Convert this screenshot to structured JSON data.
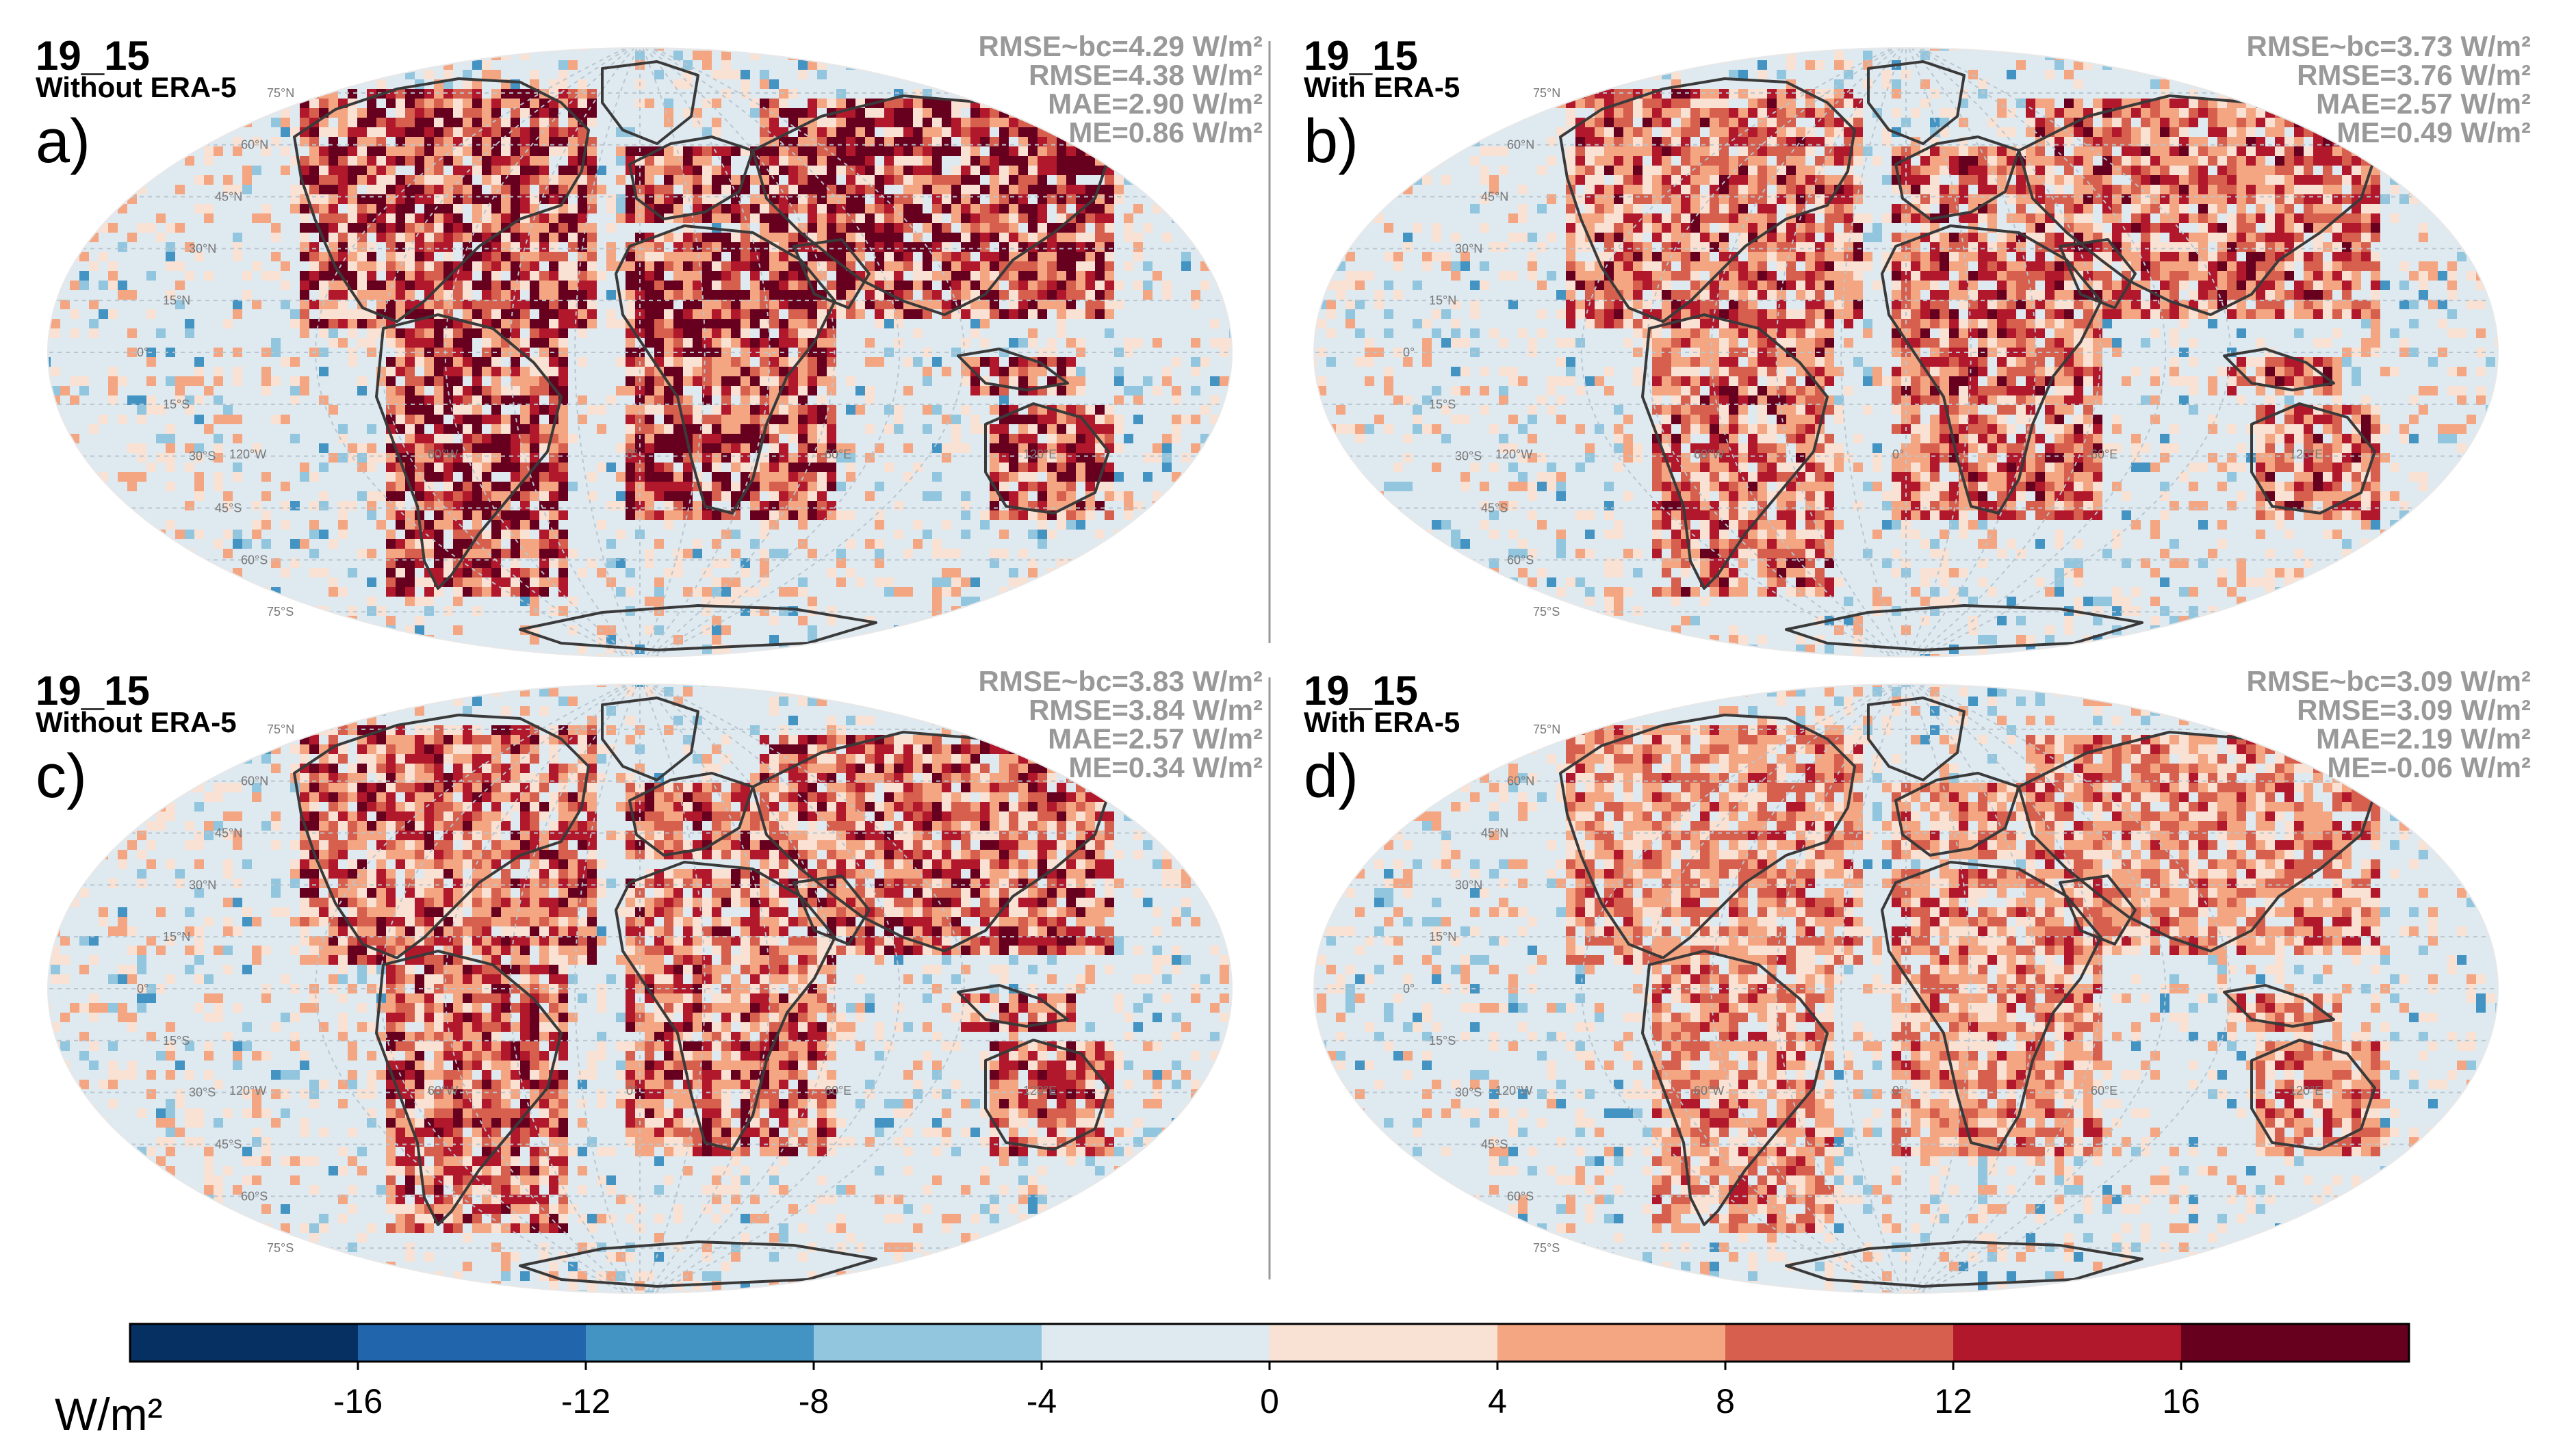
{
  "figure": {
    "panels": [
      {
        "letter": "a)",
        "title": "19_15",
        "subtitle": "Without ERA-5",
        "stats": [
          "RMSE~bc=4.29 W/m²",
          "RMSE=4.38 W/m²",
          "MAE=2.90 W/m²",
          "ME=0.86 W/m²"
        ]
      },
      {
        "letter": "b)",
        "title": "19_15",
        "subtitle": "With ERA-5",
        "stats": [
          "RMSE~bc=3.73 W/m²",
          "RMSE=3.76 W/m²",
          "MAE=2.57 W/m²",
          "ME=0.49 W/m²"
        ]
      },
      {
        "letter": "c)",
        "title": "19_15",
        "subtitle": "Without ERA-5",
        "stats": [
          "RMSE~bc=3.83 W/m²",
          "RMSE=3.84 W/m²",
          "MAE=2.57 W/m²",
          "ME=0.34 W/m²"
        ]
      },
      {
        "letter": "d)",
        "title": "19_15",
        "subtitle": "With ERA-5",
        "stats": [
          "RMSE~bc=3.09 W/m²",
          "RMSE=3.09 W/m²",
          "MAE=2.19 W/m²",
          "ME=-0.06 W/m²"
        ]
      }
    ],
    "graticule_labels": {
      "lat": [
        "75°N",
        "60°N",
        "45°N",
        "30°N",
        "15°N",
        "0°",
        "15°S",
        "30°S",
        "45°S",
        "60°S",
        "75°S"
      ],
      "lon": [
        "120°W",
        "60°W",
        "0°",
        "60°E",
        "120°E"
      ]
    },
    "colorbar": {
      "unit": "W/m²",
      "tick_labels": [
        "-16",
        "-12",
        "-8",
        "-4",
        "0",
        "4",
        "8",
        "12",
        "16"
      ],
      "bins": [
        {
          "from": -20,
          "to": -16,
          "color": "#053061"
        },
        {
          "from": -16,
          "to": -12,
          "color": "#2166ac"
        },
        {
          "from": -12,
          "to": -8,
          "color": "#4393c3"
        },
        {
          "from": -8,
          "to": -4,
          "color": "#92c5de"
        },
        {
          "from": -4,
          "to": 0,
          "color": "#dfe9f0"
        },
        {
          "from": 0,
          "to": 4,
          "color": "#f9e1d3"
        },
        {
          "from": 4,
          "to": 8,
          "color": "#f4a582"
        },
        {
          "from": 8,
          "to": 12,
          "color": "#d6604d"
        },
        {
          "from": 12,
          "to": 16,
          "color": "#b2182b"
        },
        {
          "from": 16,
          "to": 20,
          "color": "#67001f"
        }
      ]
    },
    "colors": {
      "ocean_base": "#dfe9f0",
      "land_outline": "#333333",
      "stat_text": "#999999"
    }
  }
}
